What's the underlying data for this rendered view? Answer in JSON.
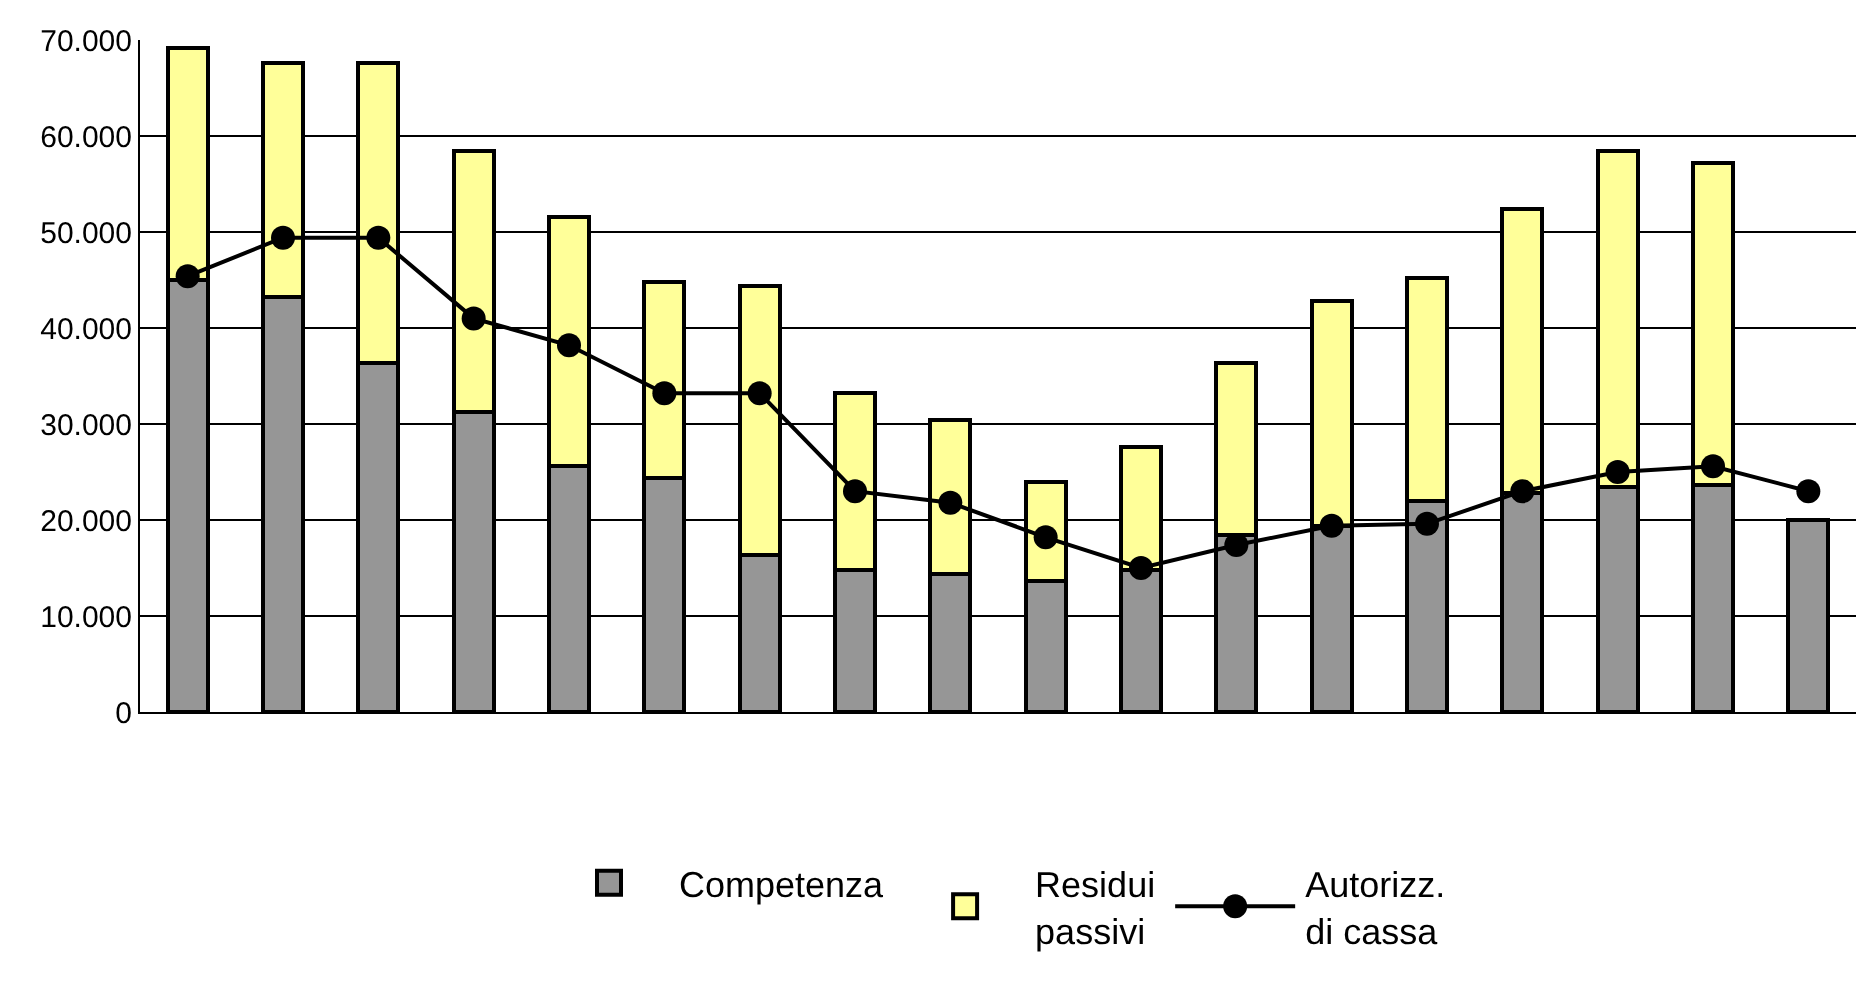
{
  "chart_data": {
    "type": "bar",
    "stacked": true,
    "categories": [
      null,
      null,
      null,
      null,
      null,
      null,
      null,
      null,
      null,
      null,
      null,
      null,
      null,
      null,
      null,
      null,
      null,
      null
    ],
    "series": [
      {
        "name": "Competenza",
        "color": "#969696",
        "values": [
          45000,
          43200,
          36400,
          31200,
          25600,
          24400,
          16400,
          14800,
          14400,
          13600,
          14800,
          18400,
          19400,
          22000,
          22800,
          23400,
          23600,
          20000
        ]
      },
      {
        "name": "Residui\npassivi",
        "color": "#ffff99",
        "values": [
          24200,
          24400,
          31200,
          27200,
          26000,
          20400,
          28000,
          18400,
          16000,
          10400,
          12800,
          18000,
          23400,
          23200,
          29600,
          35000,
          33600,
          null
        ]
      },
      {
        "name": "Autorizz.\ndi cassa",
        "type": "line",
        "color": "#000000",
        "marker": "circle",
        "line_style": "solid",
        "values": [
          45400,
          49400,
          49400,
          41000,
          38200,
          33200,
          33200,
          23000,
          21800,
          18200,
          15000,
          17400,
          19400,
          19600,
          23000,
          25000,
          25600,
          23000
        ]
      }
    ],
    "ylim": [
      0,
      70000
    ],
    "yticks": [
      {
        "value": 0,
        "label": "0"
      },
      {
        "value": 10000,
        "label": "10.000"
      },
      {
        "value": 20000,
        "label": "20.000"
      },
      {
        "value": 30000,
        "label": "30.000"
      },
      {
        "value": 40000,
        "label": "40.000"
      },
      {
        "value": 50000,
        "label": "50.000"
      },
      {
        "value": 60000,
        "label": "60.000"
      },
      {
        "value": 70000,
        "label": "70.000"
      }
    ],
    "grid": "y",
    "legend": "bottom",
    "tick_labels": "y"
  }
}
